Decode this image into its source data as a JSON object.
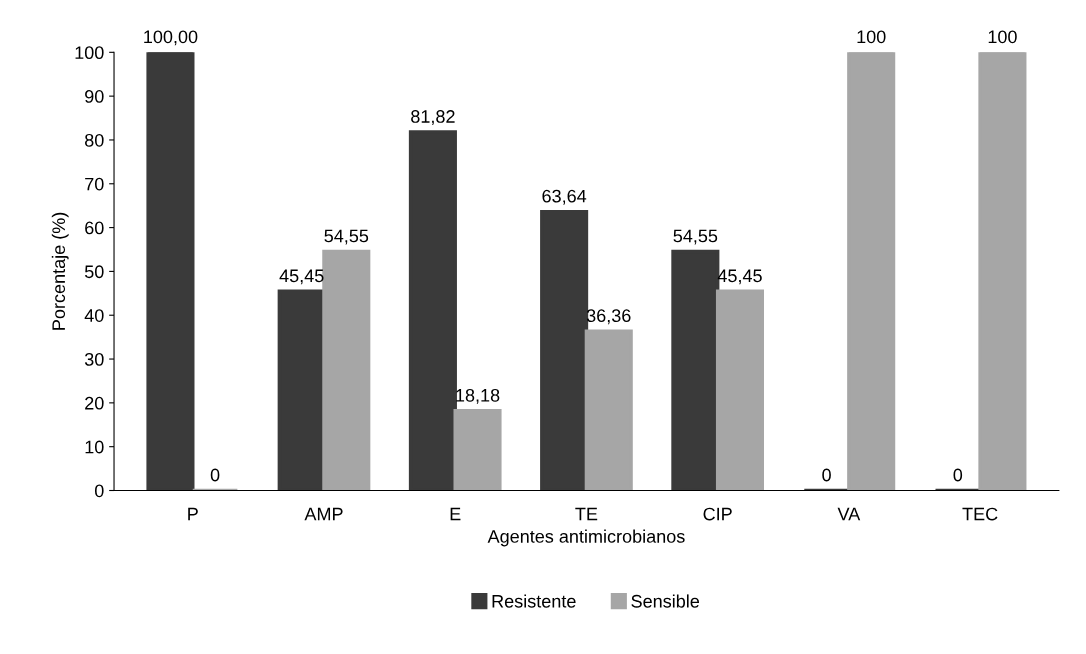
{
  "chart_data": {
    "type": "bar",
    "xlabel": "Agentes antimicrobianos",
    "ylabel": "Porcentaje (%)",
    "categories": [
      "P",
      "AMP",
      "E",
      "TE",
      "CIP",
      "VA",
      "TEC"
    ],
    "series": [
      {
        "name": "Resistente",
        "color": "#3a3a3a",
        "values": [
          100,
          45.45,
          81.82,
          63.64,
          54.55,
          0,
          0
        ],
        "value_labels": [
          "100,00",
          "45,45",
          "81,82",
          "63,64",
          "54,55",
          "0",
          "0"
        ]
      },
      {
        "name": "Sensible",
        "color": "#a6a6a6",
        "values": [
          0,
          54.55,
          18.18,
          36.36,
          45.45,
          100,
          100
        ],
        "value_labels": [
          "0",
          "54,55",
          "18,18",
          "36,36",
          "45,45",
          "100",
          "100"
        ]
      }
    ],
    "ylim": [
      0,
      100
    ],
    "yticks": [
      0,
      10,
      20,
      30,
      40,
      50,
      60,
      70,
      80,
      90,
      100
    ],
    "grid": false,
    "legend": "bottom"
  }
}
